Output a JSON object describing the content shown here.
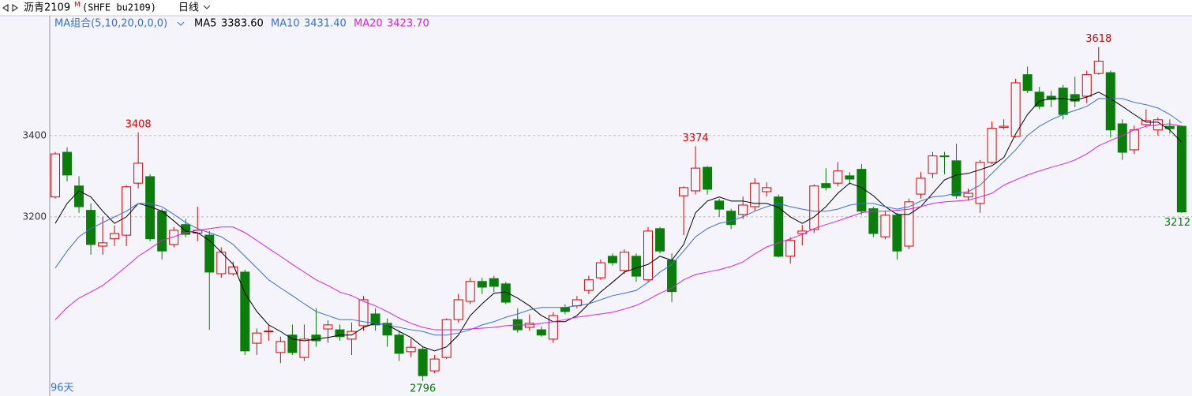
{
  "header": {
    "symbol": "沥青2109",
    "flag": "M",
    "code": "(SHFE bu2109)",
    "period": "日线"
  },
  "chart_data": {
    "type": "candlestick",
    "ma_label": "MA组合(5,10,20,0,0,0)",
    "up_color": "#e00000",
    "down_color": "#0a7d0a",
    "open": [
      3249,
      3359,
      3276,
      3216,
      3128,
      3146,
      3155,
      3283,
      3299,
      3214,
      3132,
      3181,
      3160,
      3155,
      3060,
      3060,
      3064,
      2889,
      2918,
      2866,
      2909,
      2854,
      2909,
      2924,
      2922,
      2899,
      2932,
      2961,
      2938,
      2909,
      2868,
      2874,
      2821,
      2854,
      2947,
      2992,
      3041,
      3048,
      3035,
      2947,
      2928,
      2922,
      2899,
      2977,
      2981,
      3019,
      3050,
      3103,
      3068,
      3103,
      3045,
      3171,
      3093,
      3252,
      3264,
      3322,
      3239,
      3214,
      3206,
      3225,
      3262,
      3249,
      3103,
      3159,
      3169,
      3282,
      3283,
      3301,
      3317,
      3220,
      3151,
      3204,
      3128,
      3256,
      3307,
      3350,
      3338,
      3249,
      3233,
      3334,
      3420,
      3398,
      3550,
      3507,
      3497,
      3517,
      3501,
      3497,
      3553,
      3555,
      3429,
      3365,
      3427,
      3414,
      3423,
      3423
    ],
    "high": [
      3360,
      3371,
      3300,
      3233,
      3200,
      3179,
      3278,
      3408,
      3305,
      3220,
      3175,
      3195,
      3225,
      3165,
      3125,
      3090,
      3070,
      2925,
      2935,
      2905,
      2935,
      2935,
      2975,
      2945,
      2935,
      2940,
      3005,
      2975,
      2950,
      2920,
      2900,
      2880,
      2860,
      2950,
      3010,
      3050,
      3050,
      3055,
      3040,
      2975,
      2960,
      2930,
      2965,
      2985,
      3005,
      3055,
      3095,
      3110,
      3120,
      3110,
      3175,
      3175,
      3110,
      3275,
      3374,
      3325,
      3245,
      3220,
      3250,
      3295,
      3285,
      3255,
      3150,
      3180,
      3280,
      3320,
      3335,
      3310,
      3330,
      3225,
      3215,
      3210,
      3245,
      3310,
      3360,
      3360,
      3380,
      3270,
      3340,
      3435,
      3440,
      3540,
      3570,
      3520,
      3510,
      3525,
      3545,
      3560,
      3618,
      3560,
      3440,
      3425,
      3465,
      3445,
      3440,
      3425
    ],
    "low": [
      3245,
      3287,
      3210,
      3107,
      3107,
      3128,
      3128,
      3270,
      3140,
      3095,
      3125,
      3150,
      3140,
      2922,
      3050,
      3055,
      2860,
      2860,
      2895,
      2840,
      2860,
      2845,
      2880,
      2890,
      2895,
      2860,
      2920,
      2920,
      2880,
      2845,
      2855,
      2796,
      2815,
      2850,
      2940,
      2985,
      3010,
      3015,
      2985,
      2915,
      2920,
      2905,
      2890,
      2960,
      2975,
      3010,
      3045,
      3080,
      3060,
      3040,
      3040,
      3110,
      2990,
      3155,
      3255,
      3255,
      3200,
      3170,
      3195,
      3215,
      3250,
      3100,
      3085,
      3130,
      3160,
      3265,
      3275,
      3280,
      3205,
      3150,
      3145,
      3095,
      3120,
      3245,
      3295,
      3305,
      3245,
      3240,
      3210,
      3330,
      3415,
      3395,
      3505,
      3465,
      3470,
      3440,
      3470,
      3480,
      3550,
      3395,
      3340,
      3355,
      3420,
      3400,
      3405,
      3210
    ],
    "close": [
      3355,
      3303,
      3225,
      3132,
      3136,
      3159,
      3274,
      3332,
      3146,
      3116,
      3167,
      3157,
      3167,
      3064,
      3113,
      3077,
      2870,
      2914,
      2919,
      2893,
      2866,
      2899,
      2895,
      2934,
      2905,
      2918,
      2996,
      2934,
      2909,
      2864,
      2879,
      2809,
      2850,
      2947,
      2996,
      3041,
      3027,
      3029,
      2990,
      2922,
      2938,
      2909,
      2957,
      2967,
      2996,
      3045,
      3087,
      3087,
      3113,
      3054,
      3165,
      3116,
      3016,
      3272,
      3320,
      3268,
      3219,
      3181,
      3229,
      3283,
      3272,
      3103,
      3142,
      3165,
      3276,
      3272,
      3313,
      3293,
      3214,
      3159,
      3204,
      3116,
      3237,
      3295,
      3350,
      3349,
      3252,
      3258,
      3334,
      3418,
      3423,
      3530,
      3511,
      3472,
      3489,
      3452,
      3485,
      3550,
      3583,
      3414,
      3359,
      3414,
      3437,
      3439,
      3417,
      3212
    ],
    "series": [
      {
        "name": "MA5",
        "color": "#000000",
        "value_labels": {
          "95": "3383.60"
        },
        "values": [
          3184,
          3233,
          3264,
          3249,
          3214,
          3184,
          3200,
          3233,
          3225,
          3214,
          3190,
          3165,
          3161,
          3142,
          3113,
          3083,
          3012,
          2967,
          2934,
          2918,
          2899,
          2895,
          2899,
          2903,
          2909,
          2909,
          2928,
          2938,
          2934,
          2918,
          2903,
          2880,
          2870,
          2880,
          2909,
          2957,
          2986,
          3012,
          3015,
          3000,
          2981,
          2957,
          2942,
          2942,
          2957,
          2986,
          3015,
          3039,
          3064,
          3074,
          3083,
          3103,
          3093,
          3132,
          3210,
          3239,
          3249,
          3239,
          3239,
          3233,
          3233,
          3223,
          3200,
          3184,
          3200,
          3225,
          3258,
          3283,
          3272,
          3252,
          3225,
          3206,
          3206,
          3225,
          3258,
          3291,
          3303,
          3307,
          3316,
          3326,
          3346,
          3404,
          3452,
          3485,
          3491,
          3491,
          3487,
          3495,
          3507,
          3491,
          3472,
          3452,
          3433,
          3433,
          3414,
          3383.6
        ]
      },
      {
        "name": "MA10",
        "color": "#3a6fd8",
        "value_labels": {
          "95": "3431.40"
        },
        "values": [
          3074,
          3116,
          3151,
          3171,
          3186,
          3200,
          3214,
          3233,
          3233,
          3225,
          3206,
          3186,
          3171,
          3161,
          3151,
          3132,
          3103,
          3074,
          3045,
          3025,
          3006,
          2986,
          2967,
          2957,
          2947,
          2947,
          2942,
          2938,
          2934,
          2928,
          2922,
          2918,
          2909,
          2909,
          2914,
          2922,
          2934,
          2942,
          2953,
          2961,
          2971,
          2977,
          2977,
          2977,
          2981,
          2986,
          2996,
          3006,
          3012,
          3019,
          3039,
          3064,
          3083,
          3116,
          3151,
          3171,
          3184,
          3190,
          3200,
          3214,
          3225,
          3233,
          3225,
          3219,
          3214,
          3214,
          3219,
          3229,
          3233,
          3233,
          3225,
          3219,
          3225,
          3239,
          3249,
          3252,
          3258,
          3262,
          3278,
          3307,
          3336,
          3365,
          3400,
          3423,
          3439,
          3452,
          3462,
          3472,
          3491,
          3491,
          3491,
          3482,
          3476,
          3468,
          3452,
          3431.4
        ]
      },
      {
        "name": "MA20",
        "color": "#e020e0",
        "value_labels": {
          "95": "3423.70"
        },
        "values": [
          2947,
          2977,
          3000,
          3015,
          3031,
          3054,
          3078,
          3103,
          3122,
          3142,
          3151,
          3161,
          3167,
          3171,
          3175,
          3175,
          3161,
          3142,
          3122,
          3103,
          3083,
          3064,
          3045,
          3031,
          3015,
          3006,
          2992,
          2981,
          2967,
          2951,
          2938,
          2928,
          2922,
          2922,
          2922,
          2924,
          2926,
          2928,
          2932,
          2934,
          2934,
          2938,
          2942,
          2947,
          2953,
          2957,
          2961,
          2965,
          2973,
          2982,
          2996,
          3012,
          3025,
          3045,
          3058,
          3064,
          3070,
          3078,
          3089,
          3109,
          3126,
          3136,
          3146,
          3157,
          3171,
          3181,
          3190,
          3200,
          3210,
          3214,
          3214,
          3216,
          3219,
          3225,
          3233,
          3237,
          3239,
          3241,
          3249,
          3258,
          3278,
          3291,
          3303,
          3313,
          3322,
          3330,
          3340,
          3355,
          3375,
          3388,
          3400,
          3414,
          3423,
          3427,
          3429,
          3423.7
        ]
      }
    ],
    "ylim": [
      2759,
      3695
    ],
    "yticks": [
      3200,
      3400
    ],
    "grid": true,
    "footer_label": "96天"
  }
}
